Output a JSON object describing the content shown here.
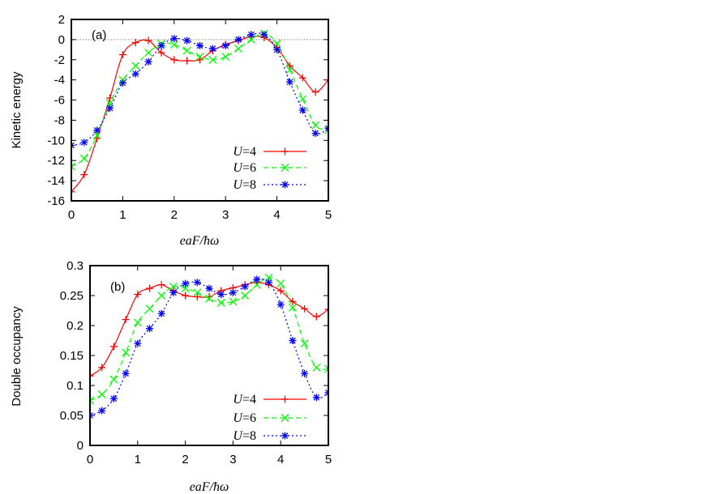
{
  "chart_data": [
    {
      "type": "line",
      "panel_label": "(a)",
      "xlabel": "eaF/ħω",
      "ylabel": "Kinetic energy",
      "xlim": [
        0,
        5
      ],
      "ylim": [
        -16,
        2
      ],
      "xticks": [
        "0",
        "1",
        "2",
        "3",
        "4",
        "5"
      ],
      "yticks": [
        "-16",
        "-14",
        "-12",
        "-10",
        "-8",
        "-6",
        "-4",
        "-2",
        "0",
        "2"
      ],
      "zero_reference_line": true,
      "legend_position": "bottom-right",
      "x": [
        0,
        0.25,
        0.5,
        0.75,
        1.0,
        1.25,
        1.5,
        1.75,
        2.0,
        2.25,
        2.5,
        2.75,
        3.0,
        3.25,
        3.5,
        3.75,
        4.0,
        4.25,
        4.5,
        4.75,
        5.0
      ],
      "series": [
        {
          "name": "U=4",
          "color": "#ff0000",
          "marker": "plus",
          "dash": "solid",
          "values": [
            -15.1,
            -13.4,
            -9.8,
            -5.8,
            -1.5,
            -0.3,
            -0.1,
            -1.3,
            -2.0,
            -2.1,
            -2.0,
            -1.1,
            -0.5,
            -0.1,
            0.3,
            0.2,
            -0.8,
            -2.6,
            -3.8,
            -5.2,
            -4.0
          ]
        },
        {
          "name": "U=6",
          "color": "#00ff00",
          "marker": "cross",
          "dash": "dashed",
          "values": [
            -12.6,
            -11.8,
            -9.5,
            -6.3,
            -4.0,
            -2.6,
            -1.3,
            -0.4,
            -0.5,
            -1.1,
            -1.7,
            -2.0,
            -1.7,
            -0.9,
            0.0,
            0.6,
            -0.4,
            -3.0,
            -5.9,
            -8.5,
            -9.0
          ]
        },
        {
          "name": "U=8",
          "color": "#0000ff",
          "marker": "star",
          "dash": "dotted",
          "values": [
            -10.5,
            -10.2,
            -9.0,
            -6.8,
            -4.3,
            -3.4,
            -2.2,
            -0.6,
            0.1,
            -0.1,
            -0.6,
            -0.9,
            -0.6,
            0.0,
            0.5,
            0.5,
            -1.0,
            -4.2,
            -7.0,
            -9.3,
            -8.8
          ]
        }
      ]
    },
    {
      "type": "line",
      "panel_label": "(b)",
      "xlabel": "eaF/ħω",
      "ylabel": "Double occupancy",
      "xlim": [
        0,
        5
      ],
      "ylim": [
        0,
        0.3
      ],
      "xticks": [
        "0",
        "1",
        "2",
        "3",
        "4",
        "5"
      ],
      "yticks": [
        "0",
        "0.05",
        "0.1",
        "0.15",
        "0.2",
        "0.25",
        "0.3"
      ],
      "legend_position": "bottom-right",
      "x": [
        0,
        0.25,
        0.5,
        0.75,
        1.0,
        1.25,
        1.5,
        1.75,
        2.0,
        2.25,
        2.5,
        2.75,
        3.0,
        3.25,
        3.5,
        3.75,
        4.0,
        4.25,
        4.5,
        4.75,
        5.0
      ],
      "series": [
        {
          "name": "U=4",
          "color": "#ff0000",
          "marker": "plus",
          "dash": "solid",
          "values": [
            0.116,
            0.13,
            0.165,
            0.21,
            0.252,
            0.262,
            0.268,
            0.258,
            0.25,
            0.248,
            0.248,
            0.258,
            0.263,
            0.268,
            0.272,
            0.268,
            0.258,
            0.24,
            0.228,
            0.215,
            0.227
          ]
        },
        {
          "name": "U=6",
          "color": "#00ff00",
          "marker": "cross",
          "dash": "dashed",
          "values": [
            0.075,
            0.085,
            0.11,
            0.155,
            0.205,
            0.228,
            0.25,
            0.265,
            0.262,
            0.255,
            0.245,
            0.238,
            0.24,
            0.25,
            0.268,
            0.28,
            0.27,
            0.23,
            0.17,
            0.13,
            0.128
          ]
        },
        {
          "name": "U=8",
          "color": "#0000ff",
          "marker": "star",
          "dash": "dotted",
          "values": [
            0.05,
            0.058,
            0.078,
            0.12,
            0.17,
            0.195,
            0.22,
            0.255,
            0.27,
            0.272,
            0.262,
            0.252,
            0.255,
            0.265,
            0.277,
            0.272,
            0.235,
            0.175,
            0.12,
            0.08,
            0.088
          ]
        }
      ]
    }
  ]
}
